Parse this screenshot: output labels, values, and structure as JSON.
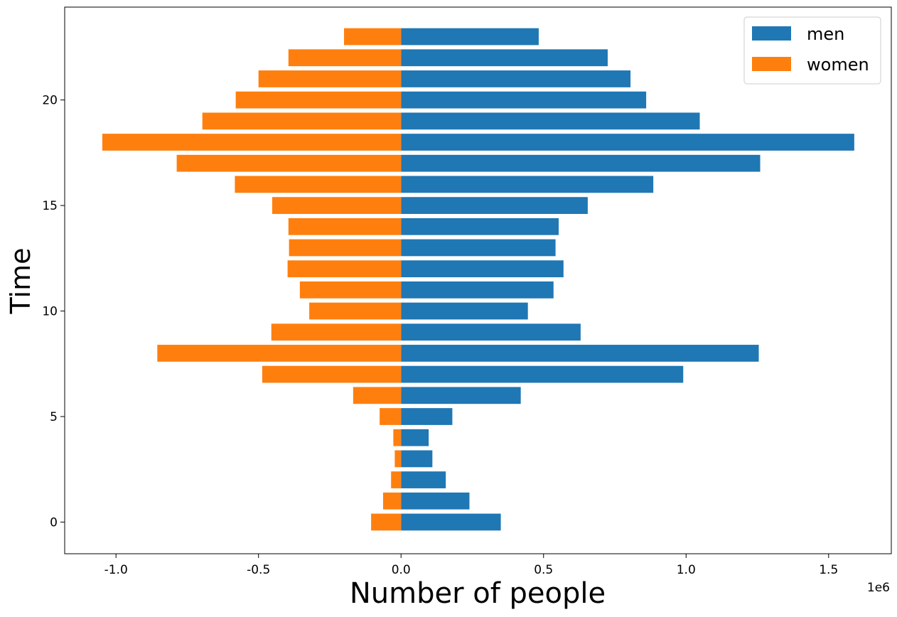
{
  "chart_data": {
    "type": "bar",
    "orientation": "horizontal",
    "xlabel": "Number of people",
    "ylabel": "Time",
    "x_offset_label": "1e6",
    "xlim": [
      -1.18,
      1.72
    ],
    "ylim": [
      -1.5,
      24.4
    ],
    "x_scale": 1000000,
    "x_ticks": [
      -1.0,
      -0.5,
      0.0,
      0.5,
      1.0,
      1.5
    ],
    "x_tick_labels": [
      "-1.0",
      "-0.5",
      "0.0",
      "0.5",
      "1.0",
      "1.5"
    ],
    "y_ticks": [
      0,
      5,
      10,
      15,
      20
    ],
    "y_tick_labels": [
      "0",
      "5",
      "10",
      "15",
      "20"
    ],
    "grid": false,
    "legend_position": "top-right",
    "categories": [
      0,
      1,
      2,
      3,
      4,
      5,
      6,
      7,
      8,
      9,
      10,
      11,
      12,
      13,
      14,
      15,
      16,
      17,
      18,
      19,
      20,
      21,
      22,
      23
    ],
    "series": [
      {
        "name": "men",
        "color": "#1f77b4",
        "values": [
          350000,
          240000,
          157000,
          110000,
          97000,
          180000,
          420000,
          990000,
          1255000,
          630000,
          445000,
          535000,
          570000,
          542000,
          553000,
          655000,
          885000,
          1260000,
          1590000,
          1048000,
          860000,
          805000,
          725000,
          483000
        ]
      },
      {
        "name": "women",
        "color": "#ff7f0e",
        "values": [
          -105000,
          -63000,
          -35000,
          -22000,
          -27000,
          -75000,
          -168000,
          -487000,
          -855000,
          -455000,
          -322000,
          -355000,
          -398000,
          -393000,
          -395000,
          -452000,
          -583000,
          -787000,
          -1048000,
          -697000,
          -580000,
          -500000,
          -395000,
          -200000
        ]
      }
    ]
  }
}
